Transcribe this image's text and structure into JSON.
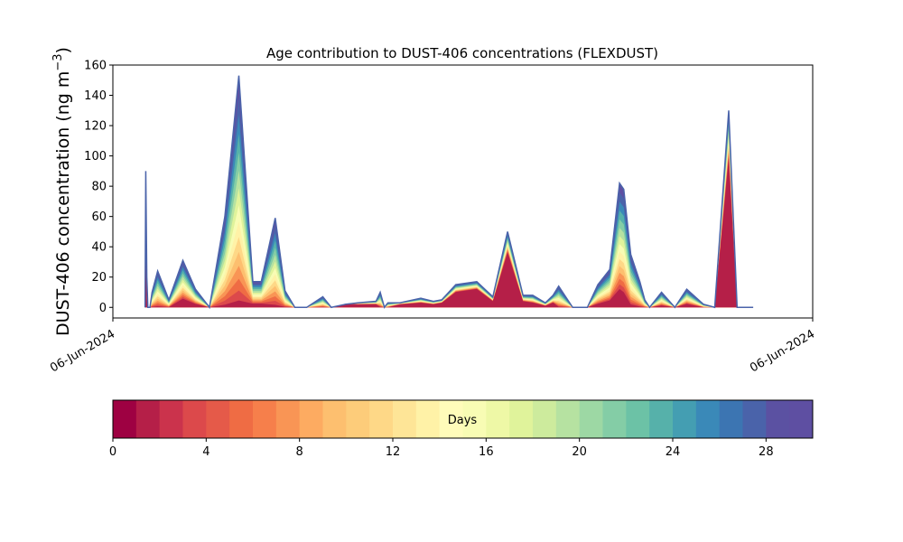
{
  "chart_data": {
    "type": "area",
    "title": "Age contribution to DUST-406 concentrations (FLEXDUST)",
    "ylabel_main": "DUST-406 concentration (ng m",
    "ylabel_exp": "−3",
    "ylabel_close": ")",
    "ylim": [
      -7,
      160
    ],
    "yticks": [
      0,
      20,
      40,
      60,
      80,
      100,
      120,
      140,
      160
    ],
    "xlim": [
      0,
      100
    ],
    "xtick_labels": [
      "06-Jun-2024",
      "06-Jun-2024"
    ],
    "xticks": [
      0,
      100
    ],
    "grid": false,
    "stack_levels": [
      0,
      2,
      4,
      6,
      8,
      10,
      12,
      14,
      16,
      18,
      20,
      22,
      24,
      26,
      28,
      30
    ],
    "x": [
      4.6,
      4.7,
      4.85,
      5.0,
      5.3,
      5.6,
      6.4,
      8.0,
      10.0,
      11.8,
      13.8,
      16.0,
      18.0,
      20.0,
      21.2,
      23.2,
      24.6,
      26.0,
      27.7,
      30.0,
      31.2,
      33.2,
      35.0,
      37.6,
      38.2,
      38.8,
      39.3,
      41.0,
      44.0,
      45.8,
      47.0,
      49.0,
      52.0,
      54.3,
      56.4,
      58.6,
      60.0,
      61.8,
      62.9,
      63.7,
      65.7,
      67.8,
      69.3,
      71.0,
      72.4,
      73.0,
      74.0,
      75.3,
      76.0,
      76.7,
      78.4,
      80.3,
      82.0,
      84.4,
      86.0,
      88.0,
      89.2,
      89.7,
      90.0,
      90.5,
      91.0,
      91.3,
      91.5
    ],
    "total": [
      0,
      90,
      20,
      0,
      0,
      10,
      24,
      5,
      31,
      12,
      0,
      60,
      153,
      17,
      17,
      59,
      11,
      0,
      0,
      7,
      0,
      2,
      3,
      4,
      10,
      0,
      3,
      3,
      6,
      4,
      5,
      15,
      17,
      7,
      50,
      8,
      8,
      3,
      8,
      14,
      0,
      0,
      15,
      25,
      82,
      78,
      35,
      17,
      5,
      0,
      10,
      0,
      12,
      2,
      0,
      130,
      0,
      0,
      0,
      0,
      0,
      0,
      0
    ],
    "young_max": [
      0,
      60,
      5,
      0,
      0,
      0,
      0,
      0,
      5,
      2,
      0,
      0,
      0,
      2,
      2,
      0,
      0,
      0,
      0,
      0,
      0,
      2,
      2,
      2,
      0,
      0,
      0,
      2,
      3,
      2,
      3,
      10,
      12,
      4,
      36,
      4,
      3,
      1,
      3,
      0,
      0,
      0,
      2,
      4,
      10,
      8,
      1,
      0,
      0,
      0,
      1,
      0,
      2,
      0,
      0,
      98,
      0,
      0,
      0,
      0,
      0,
      0,
      0
    ],
    "colorbar": {
      "label": "Days",
      "ticks": [
        0,
        4,
        8,
        12,
        16,
        20,
        24,
        28
      ],
      "range": [
        0,
        30
      ],
      "colors": [
        "#9e0142",
        "#b51f48",
        "#cb334c",
        "#dc494b",
        "#e55a49",
        "#ef6c44",
        "#f67f4b",
        "#f99555",
        "#fdab61",
        "#fdbf6f",
        "#fdcc7a",
        "#fed887",
        "#fee597",
        "#fff2a7",
        "#fffcba",
        "#f8fcb4",
        "#eef8a6",
        "#e0f39b",
        "#cdeb9d",
        "#b6e2a1",
        "#9dd8a4",
        "#84cda6",
        "#6cc2a6",
        "#56b1aa",
        "#449eb2",
        "#3a89b8",
        "#3c75b2",
        "#4a63aa",
        "#5b51a2",
        "#5e4fa2"
      ]
    }
  }
}
